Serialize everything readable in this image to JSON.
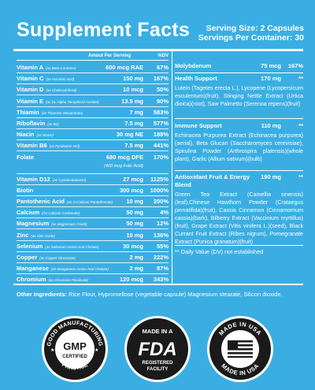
{
  "header": {
    "title": "Supplement Facts",
    "serving_size": "Serving Size: 2 Capsules",
    "servings_per_container": "Servings Per Container: 30"
  },
  "columns": {
    "amount": "Amout Per Serving",
    "dv": "%DV"
  },
  "left_rows": [
    {
      "name": "Vitamin A",
      "source": "(as Beta-Carotene)",
      "amount": "600 mcg RAE",
      "dv": "67%"
    },
    {
      "name": "Vitamin C",
      "source": "(as Ascorbic Acid)",
      "amount": "150 mg",
      "dv": "167%"
    },
    {
      "name": "Vitamin D",
      "source": "(as Cholecalciferol)",
      "amount": "10 mcg",
      "dv": "50%"
    },
    {
      "name": "Vitamin E",
      "source": "(as DL-Alpha Tocopherol Acetate)",
      "amount": "13.5 mg",
      "dv": "90%"
    },
    {
      "name": "Thiamin",
      "source": "(as Thiamine Mononitrate)",
      "amount": "7 mg",
      "dv": "583%"
    },
    {
      "name": "Riboflavin",
      "source": "(as B2)",
      "amount": "7.5 mg",
      "dv": "577%"
    },
    {
      "name": "Niacin",
      "source": "(as Niacin)",
      "amount": "30 mg NE",
      "dv": "188%"
    },
    {
      "name": "Vitamin B6",
      "source": "(as Pyridoxine HCl)",
      "amount": "7.5 mg",
      "dv": "441%"
    },
    {
      "name": "Folate",
      "source": "",
      "amount": "680 mcg DFE",
      "dv": "170%",
      "sub": "(400 mcg Folic Acid)"
    },
    {
      "name": "Vitamin D12",
      "source": "(as Cyanocobalamin)",
      "amount": "27 mcg",
      "dv": "1125%"
    },
    {
      "name": "Biotin",
      "source": "",
      "amount": "300 mcg",
      "dv": "1000%"
    },
    {
      "name": "Pantothenic Acid",
      "source": "(as D-Calcium Pantothenate)",
      "amount": "10 mg",
      "dv": "200%"
    },
    {
      "name": "Calcium",
      "source": "(As Calcium Carbonate)",
      "amount": "50 mg",
      "dv": "4%"
    },
    {
      "name": "Magnesium",
      "source": "(as Magnesium Oxide)",
      "amount": "50 mg",
      "dv": "12%"
    },
    {
      "name": "Zinc",
      "source": "(as Zinc Oxide)",
      "amount": "15 mg",
      "dv": "136%"
    },
    {
      "name": "Selenium",
      "source": "(as Selenium Amino Acid Chelate)",
      "amount": "30 mcg",
      "dv": "55%"
    },
    {
      "name": "Copper",
      "source": "(as Copper Gluconate)",
      "amount": "2 mg",
      "dv": "222%"
    },
    {
      "name": "Manganese",
      "source": "(as Manganese Amino Acid Chelate)",
      "amount": "2 mg",
      "dv": "87%"
    },
    {
      "name": "Chromium",
      "source": "(as Chromium Picolinate)",
      "amount": "120 mcg",
      "dv": "343%"
    }
  ],
  "right": {
    "molybdenum": {
      "name": "Molybdenum",
      "amount": "75 mcg",
      "dv": "167%"
    },
    "health_support": {
      "name": "Health Support",
      "amount": "170 mg",
      "dv": "**",
      "body": "Lutein (Tagetes erecta L.), Lycopene (Lycopersicum esculentum)(fruit), Stinging Nettle Extract (Urtica dioica)(root), Saw Palmetto (Serenoa repens)(fruit)"
    },
    "immune_support": {
      "name": "Immune Support",
      "amount": "110 mg",
      "dv": "**",
      "body": "Echinacea Purpurea Extract (Echinacea purpurea)(aerial), Beta Glucan (Saccharomyces cerevisiae), Spirulina Powder (Arthrospira platensis)(whole plant), Garlic (Allium sativum)(bulb)"
    },
    "antioxidant": {
      "name": "Antioxidant Fruit & Energy Blend",
      "amount": "190 mg",
      "dv": "**",
      "body": "Green Tea Extract (Camellia sinensis)(leaf),Chinese Hawthorn Powder (Crataegus pinnatifida)(fruit), Cassia Cinnamon (Cinnamomum cassia)(bark), Bilberry Extract (Vaccinium myrtillus)(fruit), Grape Extract (Vitis vinifera L.)(seed), Black Currant Fruit Extract (Ribes nigrum), Pomegranate Extract (Punica granatum)(fruit)"
    },
    "dv_note": "** Daily Value (DV) not established"
  },
  "other_ingredients": {
    "label": "Other Ingredients:",
    "text": " Rice Flour, Hypromellose (vegetable capsule) Magnesium stearate, Silicon dioxide."
  },
  "badges": {
    "gmp": {
      "ring": "GOOD MANUFACTURING",
      "bottom": "PRACTICE",
      "line1": "GMP",
      "line2": "CERTIFIED"
    },
    "fda": {
      "top": "MADE IN A",
      "mark": "FDA",
      "bottom1": "REGISTERED",
      "bottom2": "FACILITY"
    },
    "usa": {
      "top": "MADE IN USA",
      "bottom": "MADE IN USA"
    }
  },
  "colors": {
    "background": "#3aaee3",
    "text": "#ffffff",
    "badge": "#1a1a1a"
  }
}
